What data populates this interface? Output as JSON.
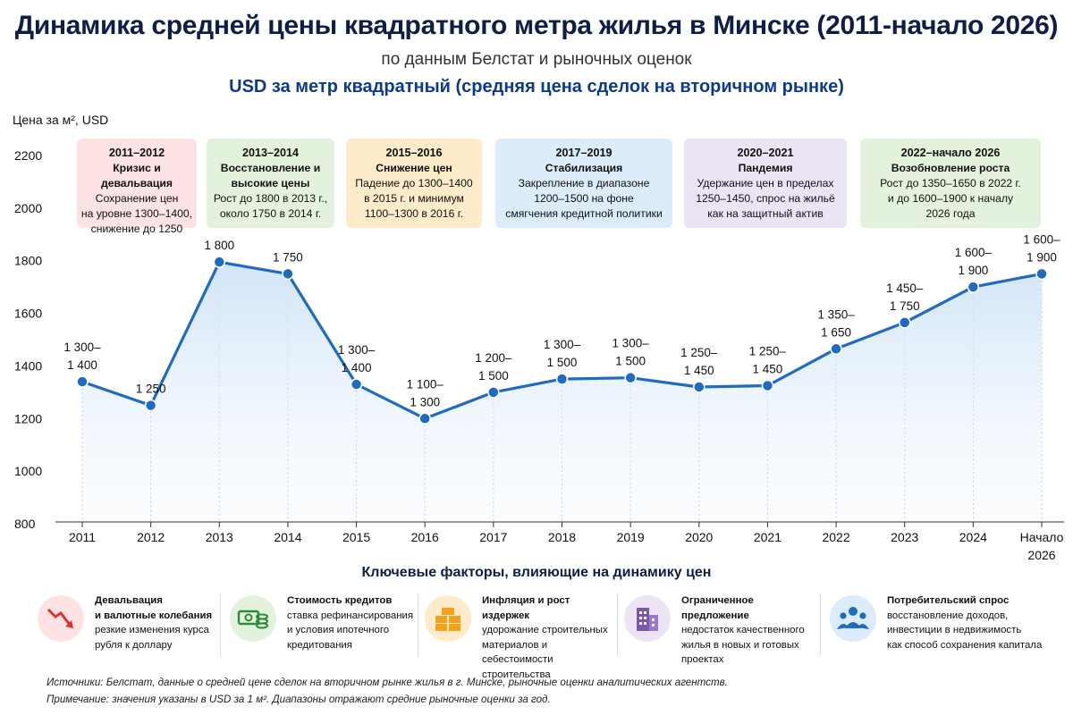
{
  "header": {
    "title": "Динамика средней цены квадратного метра жилья в Минске (2011-начало 2026)",
    "subtitle": "по данным Белстат и рыночных оценок",
    "unit_line": "USD за метр квадратный (средняя цена сделок на вторичном рынке)"
  },
  "chart_data": {
    "type": "line",
    "ylabel": "Цена за м², USD",
    "ylim": [
      800,
      2200
    ],
    "yticks": [
      "800",
      "1000",
      "1200",
      "1400",
      "1600",
      "1800",
      "2000",
      "2200"
    ],
    "grid": "vertical-dotted",
    "categories": [
      "2011",
      "2012",
      "2013",
      "2014",
      "2015",
      "2016",
      "2017",
      "2018",
      "2019",
      "2020",
      "2021",
      "2022",
      "2023",
      "2024",
      "Начало 2026"
    ],
    "values": [
      1340,
      1250,
      1795,
      1750,
      1330,
      1200,
      1300,
      1350,
      1355,
      1320,
      1325,
      1465,
      1565,
      1700,
      1750
    ],
    "point_labels": [
      [
        "1 300–",
        "1 400"
      ],
      [
        "1 250"
      ],
      [
        "1 800"
      ],
      [
        "1 750"
      ],
      [
        "1 300–",
        "1 400"
      ],
      [
        "1 100–",
        "1 300"
      ],
      [
        "1 200–",
        "1 500"
      ],
      [
        "1 300–",
        "1 500"
      ],
      [
        "1 300–",
        "1 500"
      ],
      [
        "1 250–",
        "1 450"
      ],
      [
        "1 250–",
        "1 450"
      ],
      [
        "1 350–",
        "1 650"
      ],
      [
        "1 450–",
        "1 750"
      ],
      [
        "1 600–",
        "1 900"
      ],
      [
        "1 600–",
        "1 900"
      ]
    ],
    "colors": {
      "line": "#1f6bbf",
      "marker": "#1f6bbf",
      "area_top": "#cfe3f7"
    }
  },
  "periods": [
    {
      "years": "2011–2012",
      "name": "Кризис и девальвация",
      "lines": [
        "Сохранение цен",
        "на уровне 1300–1400,",
        "снижение до 1250"
      ],
      "color": "#fde3e3"
    },
    {
      "years": "2013–2014",
      "name": "Восстановление и",
      "lines": [
        "высокие цены",
        "Рост до 1800 в 2013 г.,",
        "около 1750 в 2014 г."
      ],
      "color": "#e3f2dc"
    },
    {
      "years": "2015–2016",
      "name": "Снижение цен",
      "lines": [
        "Падение до 1300–1400",
        "в 2015 г. и минимум",
        "1100–1300 в 2016 г."
      ],
      "color": "#fdebc9"
    },
    {
      "years": "2017–2019",
      "name": "Стабилизация",
      "lines": [
        "Закрепление в диапазоне",
        "1200–1500 на фоне",
        "смягчения кредитной политики"
      ],
      "color": "#dcecfb"
    },
    {
      "years": "2020–2021",
      "name": "Пандемия",
      "lines": [
        "Удержание цен в пределах",
        "1250–1450, спрос на жильё",
        "как на защитный актив"
      ],
      "color": "#ece4f4"
    },
    {
      "years": "2022–начало 2026",
      "name": "Возобновление роста",
      "lines": [
        "Рост до 1350–1650 в 2022 г.",
        "и до 1600–1900 к началу",
        "2026 года"
      ],
      "color": "#e3f2dc"
    }
  ],
  "factors": {
    "title": "Ключевые факторы, влияющие на динамику цен",
    "items": [
      {
        "icon": "falling-chart-icon",
        "title_lines": [
          "Девальвация",
          "и валютные колебания"
        ],
        "lines": [
          "резкие изменения курса",
          "рубля к доллару"
        ],
        "color": "#fde3e3"
      },
      {
        "icon": "money-stack-icon",
        "title_lines": [
          "Стоимость кредитов"
        ],
        "lines": [
          "ставка рефинансирования",
          "и условия ипотечного",
          "кредитования"
        ],
        "color": "#e3f2dc"
      },
      {
        "icon": "bricks-icon",
        "title_lines": [
          "Инфляция и рост издержек"
        ],
        "lines": [
          "удорожание строительных",
          "материалов и себестоимости",
          "строительства"
        ],
        "color": "#fdebc9"
      },
      {
        "icon": "building-icon",
        "title_lines": [
          "Ограниченное предложение"
        ],
        "lines": [
          "недостаток качественного",
          "жилья в новых и готовых",
          "проектах"
        ],
        "color": "#ece4f4"
      },
      {
        "icon": "people-icon",
        "title_lines": [
          "Потребительский спрос"
        ],
        "lines": [
          "восстановление доходов,",
          "инвестиции в недвижимость",
          "как способ сохранения капитала"
        ],
        "color": "#dcecfb"
      }
    ]
  },
  "notes": {
    "sources_label": "Источники:",
    "sources": " Белстат, данные о средней цене сделок на вторичном рынке жилья в г. Минске, рыночные оценки аналитических агентств.",
    "note_label": "Примечание:",
    "note": " значения указаны в USD за 1 м². Диапазоны отражают средние рыночные оценки за год."
  }
}
